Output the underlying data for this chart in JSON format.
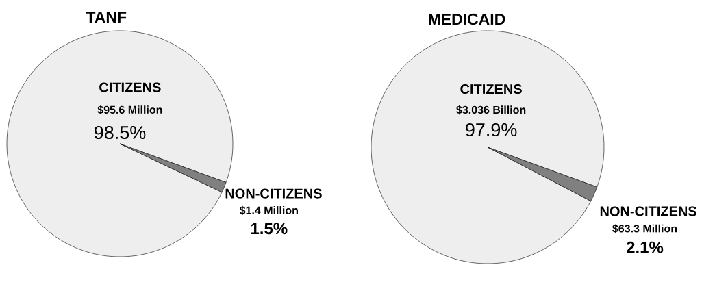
{
  "chart_data": [
    {
      "type": "pie",
      "title": "TANF",
      "categories": [
        "CITIZENS",
        "NON-CITIZENS"
      ],
      "values": [
        98.5,
        1.5
      ],
      "colors": [
        "#eeeeee",
        "#808080"
      ],
      "value_labels": [
        "98.5%",
        "1.5%"
      ],
      "annotations": [
        "$95.6 Million",
        "$1.4 Million"
      ]
    },
    {
      "type": "pie",
      "title": "MEDICAID",
      "categories": [
        "CITIZENS",
        "NON-CITIZENS"
      ],
      "values": [
        97.9,
        2.1
      ],
      "colors": [
        "#eeeeee",
        "#808080"
      ],
      "value_labels": [
        "97.9%",
        "2.1%"
      ],
      "annotations": [
        "$3.036 Billion",
        "$63.3 Million"
      ]
    }
  ]
}
